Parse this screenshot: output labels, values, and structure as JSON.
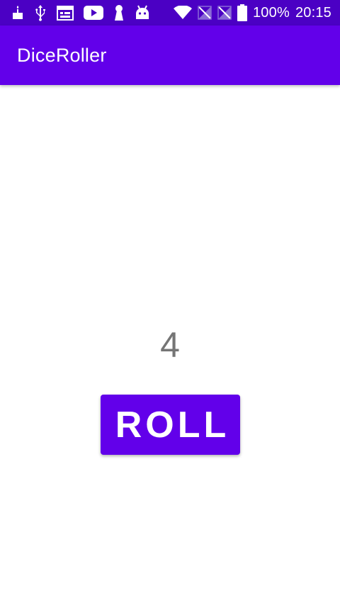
{
  "status_bar": {
    "battery_percent_label": "100%",
    "time": "20:15",
    "left_icons": [
      "cake-icon",
      "usb-icon",
      "calendar-icon",
      "youtube-icon",
      "keyhole-icon",
      "android-icon"
    ],
    "right_icons": [
      "wifi-icon",
      "no-signal-icon",
      "no-signal-icon",
      "battery-icon"
    ]
  },
  "app_bar": {
    "title": "DiceRoller"
  },
  "main": {
    "result": "4",
    "roll_button_label": "ROLL"
  },
  "colors": {
    "status_bar": "#4b00c4",
    "primary": "#6200ea",
    "result_text": "#757575"
  }
}
